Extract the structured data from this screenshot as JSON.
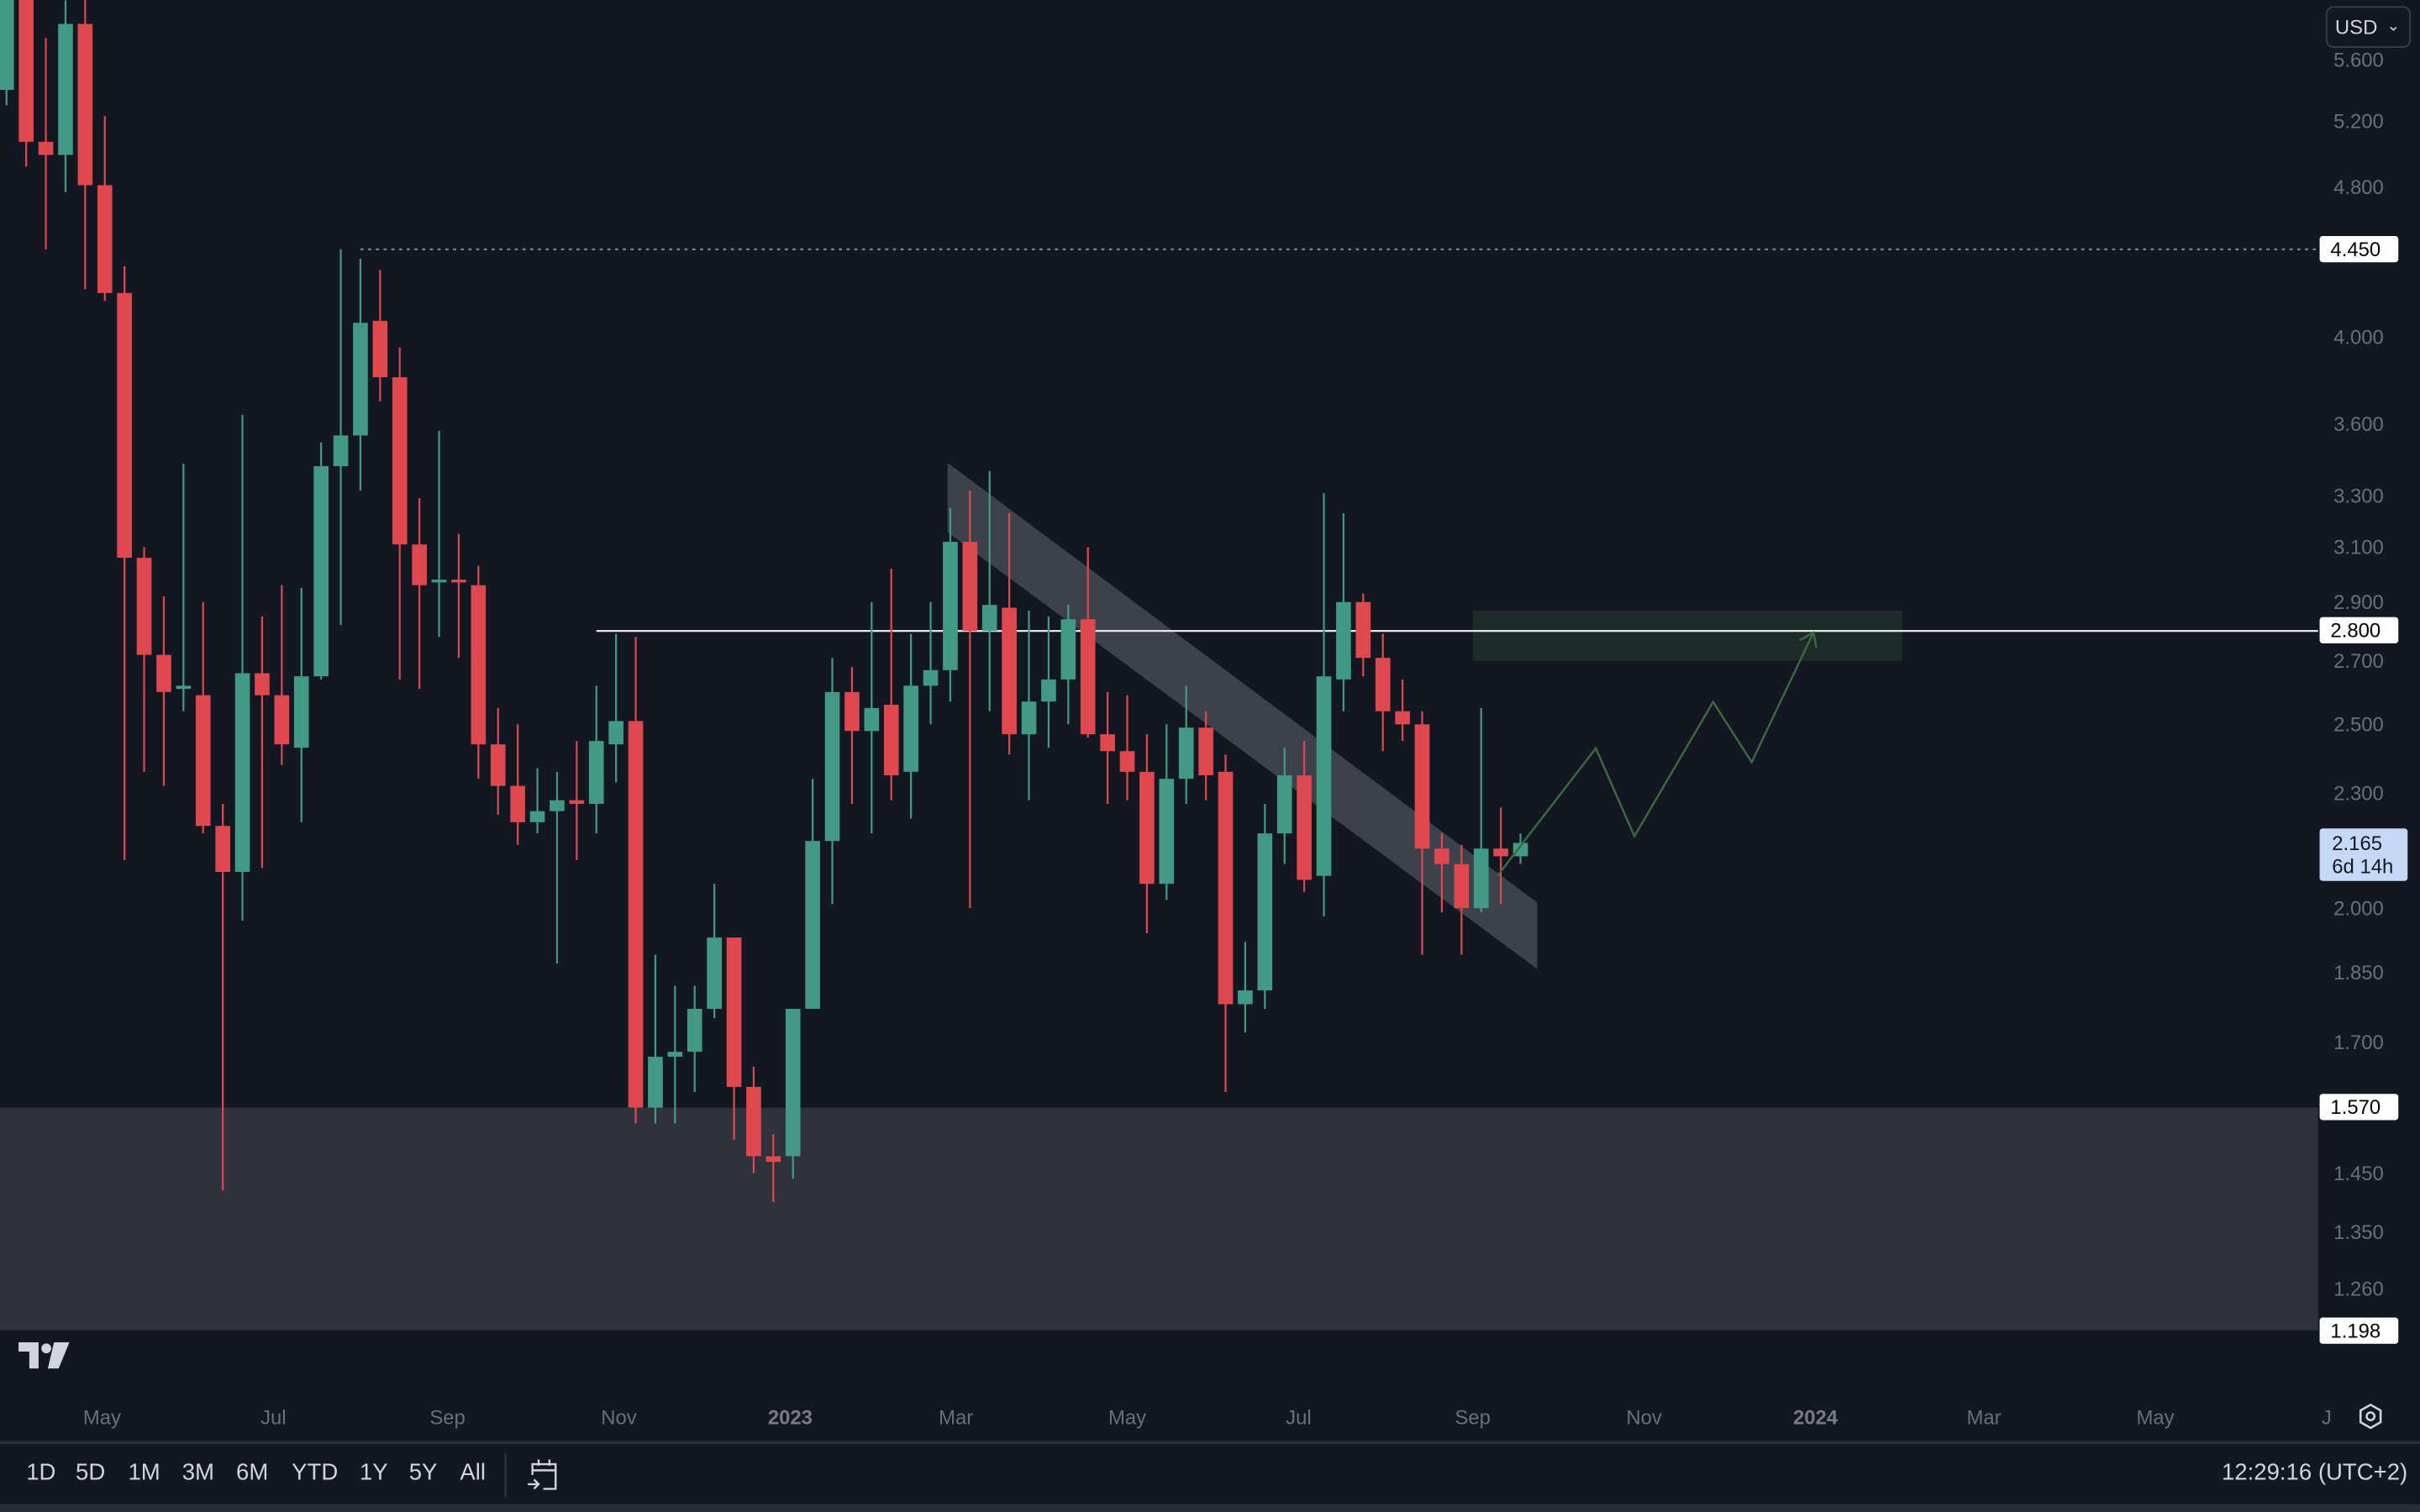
{
  "currency_selector": {
    "label": "USD",
    "icon": "chevron-down-icon"
  },
  "colors": {
    "up": "#439a84",
    "down": "#e0484f",
    "background": "#131722",
    "zone": "#2f323c",
    "target_zone": "#1c2a28",
    "projection": "#3b6b3f",
    "channel": "#787b86"
  },
  "price_labels": {
    "resistance_high": "4.450",
    "resistance": "2.800",
    "support_top": "1.570",
    "support_bottom": "1.198"
  },
  "current_price": {
    "value": "2.165",
    "countdown": "6d 14h"
  },
  "toolbar": {
    "timeframes": [
      "1D",
      "5D",
      "1M",
      "3M",
      "6M",
      "YTD",
      "1Y",
      "5Y",
      "All"
    ],
    "goto_icon": "calendar-arrow-icon",
    "clock": "12:29:16 (UTC+2)",
    "settings_icon": "gear-icon"
  },
  "chart_data": {
    "type": "candlestick",
    "interval": "weekly",
    "yscale": "log",
    "ylim": [
      1.16,
      6.0
    ],
    "grid": false,
    "yticks": [
      "5.600",
      "5.200",
      "4.800",
      "4.000",
      "3.600",
      "3.300",
      "3.100",
      "2.900",
      "2.700",
      "2.500",
      "2.300",
      "2.000",
      "1.850",
      "1.700",
      "1.450",
      "1.350",
      "1.260"
    ],
    "xticks": [
      {
        "label": "May",
        "date": "2022-05-01"
      },
      {
        "label": "Jul",
        "date": "2022-07-01"
      },
      {
        "label": "Sep",
        "date": "2022-09-01"
      },
      {
        "label": "Nov",
        "date": "2022-11-01"
      },
      {
        "label": "2023",
        "date": "2023-01-01",
        "year": true
      },
      {
        "label": "Mar",
        "date": "2023-03-01"
      },
      {
        "label": "May",
        "date": "2023-05-01"
      },
      {
        "label": "Jul",
        "date": "2023-07-01"
      },
      {
        "label": "Sep",
        "date": "2023-09-01"
      },
      {
        "label": "Nov",
        "date": "2023-11-01"
      },
      {
        "label": "2024",
        "date": "2024-01-01",
        "year": true
      },
      {
        "label": "Mar",
        "date": "2024-03-01"
      },
      {
        "label": "May",
        "date": "2024-05-01"
      },
      {
        "label": "J",
        "date": "2024-07-01"
      }
    ],
    "levels": [
      {
        "price": 4.45,
        "style": "dotted",
        "from": "2022-08-01"
      },
      {
        "price": 2.8,
        "style": "solid",
        "from": "2022-10-24"
      }
    ],
    "zones": [
      {
        "name": "support",
        "low": 1.198,
        "high": 1.57
      },
      {
        "name": "target",
        "low": 2.7,
        "high": 2.87,
        "from": "2023-09-01",
        "to": "2024-02-01"
      }
    ],
    "candles": [
      [
        "2022-03-28",
        5.4,
        6.25,
        5.3,
        6.14
      ],
      [
        "2022-04-04",
        6.1,
        6.3,
        4.92,
        5.07
      ],
      [
        "2022-04-11",
        5.07,
        5.75,
        4.45,
        4.99
      ],
      [
        "2022-04-18",
        4.99,
        6.02,
        4.77,
        5.85
      ],
      [
        "2022-04-25",
        5.85,
        6.05,
        4.24,
        4.81
      ],
      [
        "2022-05-02",
        4.81,
        5.23,
        4.18,
        4.22
      ],
      [
        "2022-05-09",
        4.22,
        4.36,
        2.12,
        3.06
      ],
      [
        "2022-05-16",
        3.06,
        3.1,
        2.36,
        2.72
      ],
      [
        "2022-05-23",
        2.72,
        2.92,
        2.32,
        2.6
      ],
      [
        "2022-05-30",
        2.61,
        3.43,
        2.54,
        2.62
      ],
      [
        "2022-06-06",
        2.59,
        2.9,
        2.19,
        2.21
      ],
      [
        "2022-06-13",
        2.21,
        2.27,
        1.42,
        2.09
      ],
      [
        "2022-06-20",
        2.09,
        3.64,
        1.97,
        2.66
      ],
      [
        "2022-06-27",
        2.66,
        2.85,
        2.1,
        2.59
      ],
      [
        "2022-07-04",
        2.59,
        2.96,
        2.38,
        2.44
      ],
      [
        "2022-07-11",
        2.43,
        2.95,
        2.22,
        2.65
      ],
      [
        "2022-07-18",
        2.65,
        3.52,
        2.64,
        3.42
      ],
      [
        "2022-07-25",
        3.42,
        4.45,
        2.82,
        3.55
      ],
      [
        "2022-08-01",
        3.55,
        4.4,
        3.32,
        4.07
      ],
      [
        "2022-08-08",
        4.08,
        4.34,
        3.7,
        3.81
      ],
      [
        "2022-08-15",
        3.81,
        3.95,
        2.64,
        3.11
      ],
      [
        "2022-08-22",
        3.11,
        3.29,
        2.61,
        2.96
      ],
      [
        "2022-08-29",
        2.97,
        3.57,
        2.78,
        2.98
      ],
      [
        "2022-09-05",
        2.98,
        3.15,
        2.71,
        2.97
      ],
      [
        "2022-09-12",
        2.96,
        3.03,
        2.34,
        2.44
      ],
      [
        "2022-09-19",
        2.44,
        2.55,
        2.24,
        2.32
      ],
      [
        "2022-09-26",
        2.32,
        2.5,
        2.16,
        2.22
      ],
      [
        "2022-10-03",
        2.22,
        2.37,
        2.19,
        2.25
      ],
      [
        "2022-10-10",
        2.25,
        2.36,
        1.87,
        2.28
      ],
      [
        "2022-10-17",
        2.28,
        2.45,
        2.12,
        2.27
      ],
      [
        "2022-10-24",
        2.27,
        2.62,
        2.19,
        2.45
      ],
      [
        "2022-10-31",
        2.44,
        2.79,
        2.33,
        2.51
      ],
      [
        "2022-11-07",
        2.51,
        2.78,
        1.54,
        1.57
      ],
      [
        "2022-11-14",
        1.57,
        1.89,
        1.54,
        1.67
      ],
      [
        "2022-11-21",
        1.67,
        1.82,
        1.54,
        1.68
      ],
      [
        "2022-11-28",
        1.68,
        1.82,
        1.6,
        1.77
      ],
      [
        "2022-12-05",
        1.77,
        2.06,
        1.75,
        1.93
      ],
      [
        "2022-12-12",
        1.93,
        1.93,
        1.51,
        1.61
      ],
      [
        "2022-12-19",
        1.61,
        1.65,
        1.45,
        1.48
      ],
      [
        "2022-12-26",
        1.48,
        1.52,
        1.4,
        1.47
      ],
      [
        "2023-01-02",
        1.48,
        1.77,
        1.44,
        1.77
      ],
      [
        "2023-01-09",
        1.77,
        2.34,
        1.77,
        2.17
      ],
      [
        "2023-01-16",
        2.17,
        2.71,
        2.01,
        2.6
      ],
      [
        "2023-01-23",
        2.6,
        2.68,
        2.27,
        2.48
      ],
      [
        "2023-01-30",
        2.48,
        2.9,
        2.19,
        2.55
      ],
      [
        "2023-02-06",
        2.56,
        3.02,
        2.28,
        2.35
      ],
      [
        "2023-02-13",
        2.36,
        2.79,
        2.23,
        2.62
      ],
      [
        "2023-02-20",
        2.62,
        2.9,
        2.5,
        2.67
      ],
      [
        "2023-02-27",
        2.67,
        3.25,
        2.57,
        3.12
      ],
      [
        "2023-03-06",
        3.12,
        3.32,
        2.0,
        2.8
      ],
      [
        "2023-03-13",
        2.8,
        3.4,
        2.54,
        2.89
      ],
      [
        "2023-03-20",
        2.88,
        3.23,
        2.41,
        2.47
      ],
      [
        "2023-03-27",
        2.47,
        2.87,
        2.28,
        2.57
      ],
      [
        "2023-04-03",
        2.57,
        2.85,
        2.43,
        2.64
      ],
      [
        "2023-04-10",
        2.64,
        2.89,
        2.5,
        2.84
      ],
      [
        "2023-04-17",
        2.84,
        3.1,
        2.46,
        2.47
      ],
      [
        "2023-04-24",
        2.47,
        2.6,
        2.27,
        2.42
      ],
      [
        "2023-05-01",
        2.42,
        2.59,
        2.28,
        2.36
      ],
      [
        "2023-05-08",
        2.36,
        2.47,
        1.94,
        2.06
      ],
      [
        "2023-05-15",
        2.06,
        2.5,
        2.02,
        2.34
      ],
      [
        "2023-05-22",
        2.34,
        2.62,
        2.27,
        2.49
      ],
      [
        "2023-05-29",
        2.49,
        2.54,
        2.28,
        2.35
      ],
      [
        "2023-06-05",
        2.36,
        2.41,
        1.6,
        1.78
      ],
      [
        "2023-06-12",
        1.78,
        1.92,
        1.72,
        1.81
      ],
      [
        "2023-06-19",
        1.81,
        2.27,
        1.77,
        2.19
      ],
      [
        "2023-06-26",
        2.19,
        2.43,
        2.11,
        2.35
      ],
      [
        "2023-07-03",
        2.35,
        2.45,
        2.04,
        2.07
      ],
      [
        "2023-07-10",
        2.08,
        3.31,
        1.98,
        2.65
      ],
      [
        "2023-07-17",
        2.64,
        3.23,
        2.54,
        2.9
      ],
      [
        "2023-07-24",
        2.9,
        2.93,
        2.65,
        2.71
      ],
      [
        "2023-07-31",
        2.71,
        2.79,
        2.42,
        2.54
      ],
      [
        "2023-08-07",
        2.54,
        2.64,
        2.45,
        2.5
      ],
      [
        "2023-08-14",
        2.5,
        2.54,
        1.89,
        2.15
      ],
      [
        "2023-08-21",
        2.15,
        2.19,
        1.99,
        2.11
      ],
      [
        "2023-08-28",
        2.11,
        2.16,
        1.89,
        2.0
      ],
      [
        "2023-09-04",
        2.0,
        2.55,
        1.99,
        2.15
      ],
      [
        "2023-09-11",
        2.15,
        2.26,
        2.01,
        2.13
      ],
      [
        "2023-09-18",
        2.13,
        2.19,
        2.11,
        2.165
      ]
    ]
  }
}
